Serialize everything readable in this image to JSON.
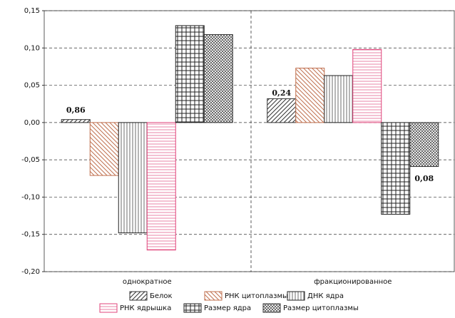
{
  "chart_data": {
    "type": "bar",
    "categories": [
      "однократное",
      "фракционированное"
    ],
    "series": [
      {
        "name": "Белок",
        "color": "#333333",
        "pattern": "diagonal",
        "values": [
          0.004,
          0.032
        ]
      },
      {
        "name": "РНК цитоплазмы",
        "color": "#c0704f",
        "pattern": "backdiagonal",
        "values": [
          -0.071,
          0.073
        ]
      },
      {
        "name": "ДНК ядра",
        "color": "#222222",
        "pattern": "vertical",
        "values": [
          -0.148,
          0.063
        ]
      },
      {
        "name": "РНК ядрышка",
        "color": "#e0457b",
        "pattern": "horizontal",
        "values": [
          -0.171,
          0.098
        ]
      },
      {
        "name": "Размер ядра",
        "color": "#222222",
        "pattern": "grid",
        "values": [
          0.13,
          -0.123
        ]
      },
      {
        "name": "Размер цитоплазмы",
        "color": "#333333",
        "pattern": "crosshatch",
        "values": [
          0.118,
          -0.059
        ]
      }
    ],
    "annotations": [
      "0,86",
      "0,24",
      "0,08"
    ],
    "ylim": [
      -0.2,
      0.15
    ],
    "yticks": [
      {
        "value": -0.2,
        "label": "-0,20"
      },
      {
        "value": -0.15,
        "label": "-0,15"
      },
      {
        "value": -0.1,
        "label": "-0,10"
      },
      {
        "value": -0.05,
        "label": "-0,05"
      },
      {
        "value": 0,
        "label": "0,00"
      },
      {
        "value": 0.05,
        "label": "0,05"
      },
      {
        "value": 0.1,
        "label": "0,10"
      },
      {
        "value": 0.15,
        "label": "0,15"
      }
    ],
    "grid": true
  }
}
